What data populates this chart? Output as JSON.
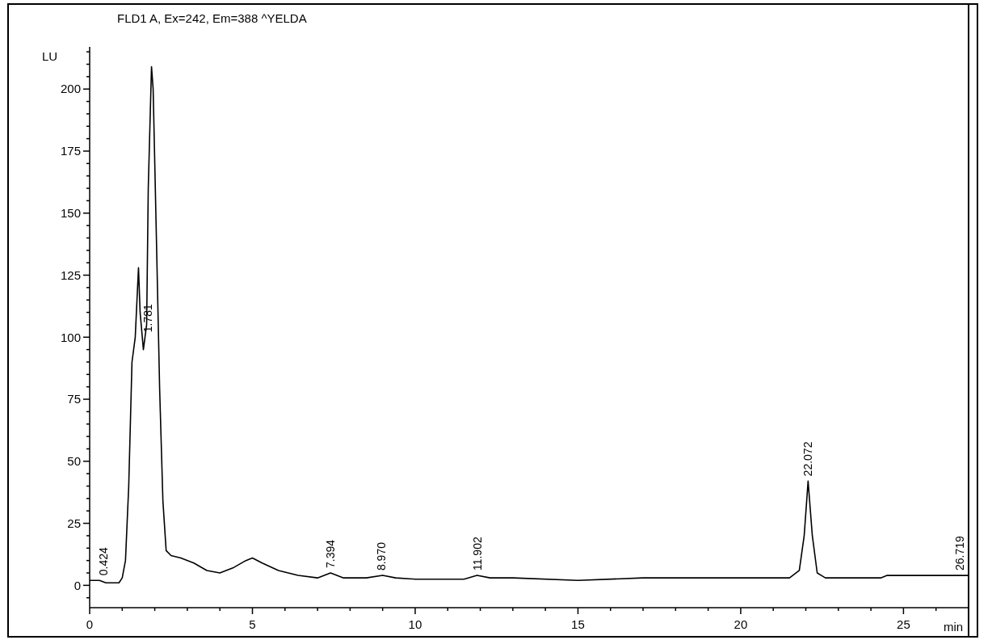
{
  "chart_data": {
    "type": "line",
    "title": "FLD1 A, Ex=242, Em=388 ^YELDA",
    "xlabel": "min",
    "ylabel": "LU",
    "xlim": [
      0,
      27
    ],
    "ylim": [
      -9,
      217
    ],
    "xticks": [
      0,
      {
        "value": 1,
        "label": null
      },
      {
        "value": 2,
        "label": null
      },
      {
        "value": 3,
        "label": null
      },
      {
        "value": 4,
        "label": null
      },
      5,
      {
        "value": 6,
        "label": null
      },
      {
        "value": 7,
        "label": null
      },
      {
        "value": 8,
        "label": null
      },
      {
        "value": 9,
        "label": null
      },
      10,
      {
        "value": 11,
        "label": null
      },
      {
        "value": 12,
        "label": null
      },
      {
        "value": 13,
        "label": null
      },
      {
        "value": 14,
        "label": null
      },
      15,
      {
        "value": 16,
        "label": null
      },
      {
        "value": 17,
        "label": null
      },
      {
        "value": 18,
        "label": null
      },
      {
        "value": 19,
        "label": null
      },
      20,
      {
        "value": 21,
        "label": null
      },
      {
        "value": 22,
        "label": null
      },
      {
        "value": 23,
        "label": null
      },
      {
        "value": 24,
        "label": null
      },
      25,
      {
        "value": 26,
        "label": null
      }
    ],
    "yticks": [
      {
        "value": -5,
        "label": null
      },
      0,
      {
        "value": 5,
        "label": null
      },
      {
        "value": 10,
        "label": null
      },
      {
        "value": 15,
        "label": null
      },
      {
        "value": 20,
        "label": null
      },
      25,
      {
        "value": 30,
        "label": null
      },
      {
        "value": 35,
        "label": null
      },
      {
        "value": 40,
        "label": null
      },
      {
        "value": 45,
        "label": null
      },
      50,
      {
        "value": 55,
        "label": null
      },
      {
        "value": 60,
        "label": null
      },
      {
        "value": 65,
        "label": null
      },
      {
        "value": 70,
        "label": null
      },
      75,
      {
        "value": 80,
        "label": null
      },
      {
        "value": 85,
        "label": null
      },
      {
        "value": 90,
        "label": null
      },
      {
        "value": 95,
        "label": null
      },
      100,
      {
        "value": 105,
        "label": null
      },
      {
        "value": 110,
        "label": null
      },
      {
        "value": 115,
        "label": null
      },
      {
        "value": 120,
        "label": null
      },
      125,
      {
        "value": 130,
        "label": null
      },
      {
        "value": 135,
        "label": null
      },
      {
        "value": 140,
        "label": null
      },
      {
        "value": 145,
        "label": null
      },
      150,
      {
        "value": 155,
        "label": null
      },
      {
        "value": 160,
        "label": null
      },
      {
        "value": 165,
        "label": null
      },
      {
        "value": 170,
        "label": null
      },
      175,
      {
        "value": 180,
        "label": null
      },
      {
        "value": 185,
        "label": null
      },
      {
        "value": 190,
        "label": null
      },
      {
        "value": 195,
        "label": null
      },
      200,
      {
        "value": 205,
        "label": null
      },
      {
        "value": 210,
        "label": null
      },
      {
        "value": 215,
        "label": null
      }
    ],
    "marker": "none",
    "line_style": "solid",
    "series": [
      {
        "color": "#000000",
        "x": [
          0,
          0.3,
          0.5,
          0.9,
          1.0,
          1.1,
          1.2,
          1.3,
          1.4,
          1.5,
          1.55,
          1.65,
          1.75,
          1.8,
          1.9,
          1.95,
          2.05,
          2.15,
          2.25,
          2.35,
          2.5,
          2.8,
          3.2,
          3.6,
          4.0,
          4.4,
          4.8,
          5.0,
          5.3,
          5.8,
          6.4,
          7.0,
          7.4,
          7.8,
          8.5,
          9.0,
          9.4,
          10,
          11.5,
          11.9,
          12.3,
          13,
          15,
          17,
          20,
          21.5,
          21.8,
          21.95,
          22.07,
          22.2,
          22.35,
          22.6,
          24.3,
          24.5,
          27
        ],
        "values": [
          2,
          2,
          1,
          1,
          3,
          10,
          40,
          90,
          100,
          128,
          110,
          95,
          105,
          160,
          209,
          200,
          140,
          79,
          34,
          14,
          12,
          11,
          9,
          6,
          5,
          7,
          10,
          11,
          9,
          6,
          4,
          3,
          5,
          3,
          3,
          4,
          3,
          2.5,
          2.5,
          4,
          3,
          3,
          2,
          3,
          3,
          3,
          6,
          20,
          42,
          20,
          5,
          3,
          3,
          4,
          4
        ]
      }
    ],
    "annotations": [
      {
        "text": "0.424",
        "x": 0.424,
        "y": 2
      },
      {
        "text": "1.781",
        "x": 1.781,
        "y": 100
      },
      {
        "text": "7.394",
        "x": 7.394,
        "y": 5
      },
      {
        "text": "8.970",
        "x": 8.97,
        "y": 4
      },
      {
        "text": "11.902",
        "x": 11.902,
        "y": 4
      },
      {
        "text": "22.072",
        "x": 22.072,
        "y": 42
      },
      {
        "text": "26.719",
        "x": 26.719,
        "y": 4
      }
    ]
  }
}
